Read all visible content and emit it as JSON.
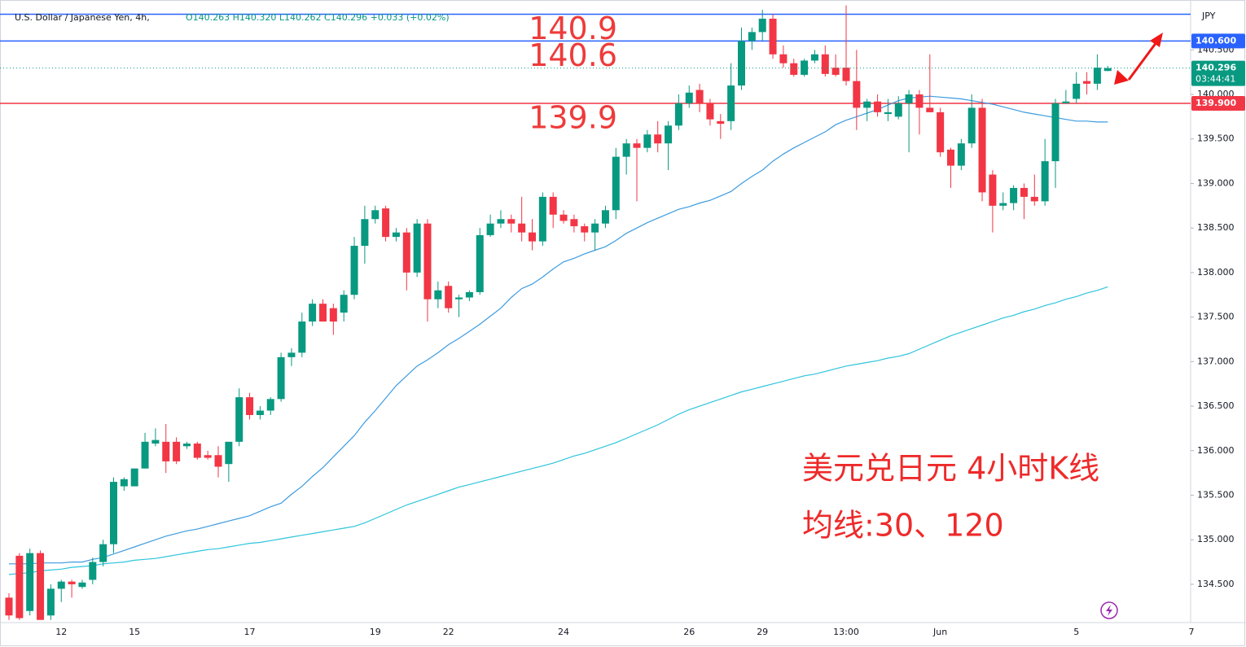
{
  "chart_data": {
    "type": "candlestick",
    "symbol": "U.S. Dollar / Japanese Yen, 4h,",
    "ohlc_text": "O140.263 H140.320 L140.262 C140.296 +0.033 (+0.02%)",
    "currency": "JPY",
    "title": "美元兑日元 4小时K线",
    "subtitle": "均线:30、120",
    "up_color": "#089981",
    "down_color": "#f23645",
    "categories": [
      null,
      null,
      null,
      null,
      null,
      "12",
      null,
      null,
      null,
      null,
      null,
      null,
      "15",
      null,
      null,
      null,
      null,
      null,
      null,
      null,
      null,
      null,
      null,
      "17",
      null,
      null,
      null,
      null,
      null,
      null,
      null,
      null,
      null,
      null,
      null,
      "19",
      null,
      null,
      null,
      null,
      null,
      null,
      "22",
      null,
      null,
      null,
      null,
      null,
      null,
      null,
      null,
      null,
      null,
      "24",
      null,
      null,
      null,
      null,
      null,
      null,
      null,
      null,
      null,
      null,
      null,
      "26",
      null,
      null,
      null,
      null,
      null,
      null,
      "29",
      null,
      null,
      null,
      null,
      null,
      null,
      null,
      "13:00",
      null,
      null,
      null,
      null,
      null,
      null,
      null,
      null,
      "Jun",
      null,
      null,
      null,
      null,
      null,
      null,
      null,
      null,
      null,
      null,
      null,
      null,
      "5",
      null,
      null,
      null,
      null,
      null,
      null,
      null,
      null,
      null,
      null,
      "7"
    ],
    "open": [
      134.35,
      134.82,
      134.2,
      134.85,
      134.15,
      134.45,
      134.53,
      134.47,
      134.55,
      134.75,
      134.95,
      135.6,
      135.6,
      135.8,
      136.08,
      136.1,
      136.1,
      136.05,
      136.08,
      135.95,
      135.95,
      135.85,
      136.1,
      136.6,
      136.4,
      136.45,
      136.58,
      137.05,
      137.1,
      137.45,
      137.65,
      137.6,
      137.55,
      137.75,
      138.3,
      138.6,
      138.72,
      138.4,
      138.45,
      138.0,
      138.55,
      137.7,
      137.85,
      137.7,
      137.72,
      137.78,
      138.42,
      138.55,
      138.6,
      138.55,
      138.45,
      138.35,
      138.85,
      138.65,
      138.6,
      138.52,
      138.45,
      138.55,
      138.7,
      139.3,
      139.45,
      139.4,
      139.55,
      139.45,
      139.65,
      139.9,
      140.05,
      139.9,
      139.7,
      139.7,
      140.1,
      140.6,
      140.7,
      140.85,
      140.45,
      140.35,
      140.22,
      140.38,
      140.45,
      140.3,
      140.3,
      140.15,
      139.85,
      139.92,
      139.78,
      139.75,
      139.9,
      140.0,
      139.85,
      139.8,
      139.38,
      139.2,
      139.45,
      139.85,
      139.1,
      138.75,
      138.78,
      138.95,
      138.85,
      138.8,
      139.25,
      139.9,
      139.95,
      140.15,
      140.12,
      140.263,
      null,
      null,
      null,
      null,
      null,
      null,
      null,
      null
    ],
    "high": [
      134.4,
      134.85,
      134.9,
      134.88,
      134.5,
      134.55,
      134.55,
      134.55,
      134.8,
      135.0,
      135.7,
      135.7,
      135.8,
      136.2,
      136.25,
      136.3,
      136.15,
      136.1,
      136.1,
      136.0,
      136.05,
      136.1,
      136.7,
      136.65,
      136.5,
      136.6,
      137.1,
      137.15,
      137.55,
      137.7,
      137.7,
      137.65,
      137.8,
      138.4,
      138.75,
      138.75,
      138.75,
      138.5,
      138.5,
      138.6,
      138.6,
      137.9,
      137.9,
      137.75,
      137.8,
      138.5,
      138.65,
      138.7,
      138.65,
      138.85,
      138.6,
      138.9,
      138.9,
      138.7,
      138.65,
      138.55,
      138.6,
      138.75,
      139.4,
      139.5,
      139.5,
      139.6,
      139.7,
      139.7,
      140.0,
      140.1,
      140.12,
      139.95,
      139.78,
      140.35,
      140.75,
      140.75,
      140.95,
      140.9,
      140.55,
      140.4,
      140.4,
      140.5,
      140.55,
      140.45,
      141.0,
      140.5,
      139.95,
      140.0,
      139.95,
      139.98,
      140.05,
      140.05,
      140.45,
      139.85,
      139.4,
      139.5,
      140.0,
      139.95,
      139.15,
      138.9,
      138.98,
      139.0,
      139.1,
      139.5,
      139.95,
      140.05,
      140.25,
      140.25,
      140.45,
      140.32,
      null,
      null,
      null,
      null,
      null,
      null,
      null,
      null
    ],
    "low": [
      134.1,
      134.1,
      134.15,
      134.1,
      134.1,
      134.3,
      134.35,
      134.45,
      134.5,
      134.7,
      134.85,
      135.55,
      135.6,
      135.8,
      136.05,
      135.75,
      135.85,
      136.02,
      135.9,
      135.9,
      135.7,
      135.65,
      136.05,
      136.35,
      136.35,
      136.4,
      136.55,
      136.95,
      137.05,
      137.4,
      137.45,
      137.3,
      137.45,
      137.7,
      138.1,
      138.55,
      138.35,
      138.35,
      137.8,
      137.95,
      137.45,
      137.6,
      137.55,
      137.5,
      137.68,
      137.75,
      138.4,
      138.5,
      138.45,
      138.35,
      138.25,
      138.3,
      138.5,
      138.55,
      138.45,
      138.35,
      138.25,
      138.5,
      138.6,
      139.1,
      138.8,
      139.35,
      139.35,
      139.15,
      139.6,
      139.85,
      139.8,
      139.65,
      139.5,
      139.6,
      140.05,
      140.5,
      140.6,
      140.4,
      140.3,
      140.2,
      140.2,
      140.35,
      140.2,
      140.2,
      140.1,
      139.6,
      139.7,
      139.75,
      139.7,
      139.72,
      139.35,
      139.55,
      139.8,
      139.3,
      138.95,
      139.15,
      139.4,
      138.8,
      138.45,
      138.7,
      138.7,
      138.6,
      138.75,
      138.75,
      138.95,
      139.9,
      139.9,
      140.0,
      140.05,
      140.262,
      null,
      null,
      null,
      null,
      null,
      null,
      null,
      null
    ],
    "close": [
      134.15,
      134.12,
      134.85,
      134.1,
      134.45,
      134.53,
      134.5,
      134.52,
      134.75,
      134.95,
      135.65,
      135.68,
      135.8,
      136.1,
      136.12,
      135.88,
      135.88,
      136.08,
      135.92,
      135.92,
      135.82,
      136.1,
      136.6,
      136.4,
      136.45,
      136.58,
      137.05,
      137.1,
      137.45,
      137.65,
      137.45,
      137.45,
      137.75,
      138.3,
      138.6,
      138.7,
      138.4,
      138.45,
      138.0,
      138.55,
      137.7,
      137.8,
      137.6,
      137.72,
      137.78,
      138.42,
      138.55,
      138.6,
      138.55,
      138.45,
      138.35,
      138.85,
      138.65,
      138.58,
      138.52,
      138.45,
      138.55,
      138.7,
      139.3,
      139.45,
      139.4,
      139.55,
      139.45,
      139.65,
      139.9,
      140.02,
      139.9,
      139.72,
      139.67,
      140.1,
      140.6,
      140.7,
      140.85,
      140.45,
      140.35,
      140.22,
      140.38,
      140.45,
      140.23,
      140.22,
      140.15,
      139.85,
      139.92,
      139.8,
      139.8,
      139.9,
      140.0,
      139.85,
      139.8,
      139.35,
      139.2,
      139.45,
      139.85,
      138.9,
      138.75,
      138.78,
      138.95,
      138.85,
      138.8,
      139.25,
      139.9,
      139.92,
      140.12,
      140.12,
      140.3,
      140.296,
      null,
      null,
      null,
      null,
      null,
      null,
      null,
      null
    ],
    "lines": [
      {
        "color": "#3d9be0",
        "values": [
          134.73,
          134.73,
          134.73,
          134.74,
          134.74,
          134.74,
          134.75,
          134.75,
          134.78,
          134.8,
          134.84,
          134.88,
          134.92,
          134.96,
          135.0,
          135.04,
          135.07,
          135.1,
          135.12,
          135.15,
          135.18,
          135.21,
          135.24,
          135.27,
          135.32,
          135.37,
          135.41,
          135.51,
          135.6,
          135.71,
          135.81,
          135.93,
          136.05,
          136.17,
          136.32,
          136.45,
          136.59,
          136.73,
          136.84,
          136.95,
          137.02,
          137.1,
          137.19,
          137.26,
          137.34,
          137.42,
          137.51,
          137.6,
          137.72,
          137.82,
          137.87,
          137.95,
          138.04,
          138.12,
          138.16,
          138.21,
          138.25,
          138.29,
          138.36,
          138.44,
          138.5,
          138.56,
          138.61,
          138.66,
          138.71,
          138.74,
          138.78,
          138.81,
          138.86,
          138.91,
          139.0,
          139.08,
          139.15,
          139.25,
          139.33,
          139.4,
          139.46,
          139.52,
          139.58,
          139.66,
          139.71,
          139.75,
          139.79,
          139.83,
          139.88,
          139.93,
          139.96,
          139.97,
          139.98,
          139.97,
          139.96,
          139.95,
          139.93,
          139.91,
          139.89,
          139.86,
          139.83,
          139.8,
          139.78,
          139.76,
          139.74,
          139.72,
          139.7,
          139.7,
          139.69,
          139.69,
          null,
          null,
          null,
          null,
          null,
          null,
          null,
          null
        ]
      },
      {
        "color": "#2ec4dc",
        "values": [
          134.61,
          134.62,
          134.63,
          134.65,
          134.66,
          134.67,
          134.69,
          134.7,
          134.71,
          134.73,
          134.74,
          134.75,
          134.77,
          134.78,
          134.79,
          134.81,
          134.83,
          134.85,
          134.87,
          134.89,
          134.9,
          134.92,
          134.94,
          134.96,
          134.97,
          134.99,
          135.01,
          135.03,
          135.05,
          135.07,
          135.09,
          135.11,
          135.13,
          135.15,
          135.19,
          135.24,
          135.29,
          135.34,
          135.39,
          135.43,
          135.47,
          135.51,
          135.55,
          135.59,
          135.62,
          135.65,
          135.68,
          135.71,
          135.74,
          135.77,
          135.8,
          135.83,
          135.86,
          135.9,
          135.94,
          135.97,
          136.01,
          136.05,
          136.09,
          136.14,
          136.19,
          136.24,
          136.29,
          136.35,
          136.41,
          136.46,
          136.5,
          136.54,
          136.58,
          136.62,
          136.66,
          136.69,
          136.72,
          136.75,
          136.78,
          136.81,
          136.84,
          136.86,
          136.89,
          136.92,
          136.95,
          136.97,
          136.99,
          137.01,
          137.04,
          137.06,
          137.09,
          137.14,
          137.19,
          137.24,
          137.29,
          137.33,
          137.37,
          137.41,
          137.45,
          137.49,
          137.52,
          137.56,
          137.59,
          137.63,
          137.66,
          137.7,
          137.73,
          137.77,
          137.8,
          137.84,
          null,
          null,
          null,
          null,
          null,
          null,
          null,
          null
        ]
      }
    ],
    "hlines": [
      {
        "value": 140.9,
        "color": "#2962ff"
      },
      {
        "value": 140.6,
        "color": "#2962ff",
        "axis_label": "140.600"
      },
      {
        "value": 139.9,
        "color": "#f23645",
        "axis_label": "139.900"
      }
    ],
    "last_price": {
      "value": 140.296,
      "countdown": "03:44:41",
      "color": "#089981"
    },
    "ylim": [
      134.07,
      141.06
    ],
    "yticks": [
      {
        "value": 134.5,
        "label": "134.500"
      },
      {
        "value": 135,
        "label": "135.000"
      },
      {
        "value": 135.5,
        "label": "135.500"
      },
      {
        "value": 136,
        "label": "136.000"
      },
      {
        "value": 136.5,
        "label": "136.500"
      },
      {
        "value": 137,
        "label": "137.000"
      },
      {
        "value": 137.5,
        "label": "137.500"
      },
      {
        "value": 138,
        "label": "138.000"
      },
      {
        "value": 138.5,
        "label": "138.500"
      },
      {
        "value": 139,
        "label": "139.000"
      },
      {
        "value": 139.5,
        "label": "139.500"
      },
      {
        "value": 140,
        "label": "140.000"
      },
      {
        "value": 140.5,
        "label": "140.500"
      }
    ],
    "grid": false
  }
}
